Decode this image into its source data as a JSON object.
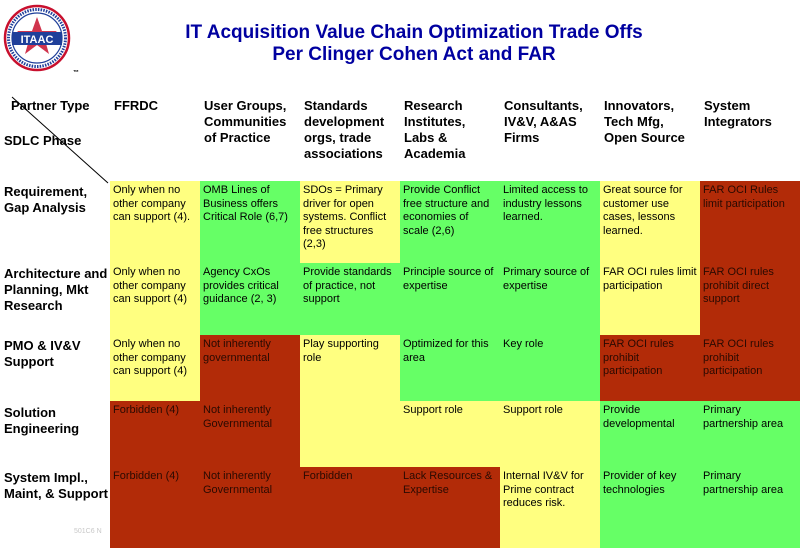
{
  "title": {
    "line1": "IT Acquisition Value Chain Optimization Trade Offs",
    "line2": "Per Clinger Cohen Act and FAR"
  },
  "logo": {
    "text": "ITAAC",
    "tm": "™"
  },
  "corner": {
    "partner_type": "Partner Type",
    "sdlc_phase": "SDLC Phase"
  },
  "columns": [
    "FFRDC",
    "User Groups, Communities of Practice",
    "Standards development orgs, trade associations",
    "Research Institutes, Labs & Academia",
    "Consultants, IV&V, A&AS Firms",
    "Innovators, Tech Mfg, Open Source",
    "System Integrators"
  ],
  "rows": [
    {
      "label": "Requirement, Gap Analysis",
      "cells": [
        {
          "text": "Only when no other company can support (4).",
          "color": "yellow"
        },
        {
          "text": "OMB Lines of Business offers Critical Role (6,7)",
          "color": "green"
        },
        {
          "text": "SDOs = Primary driver for open systems. Conflict free structures (2,3)",
          "color": "yellow"
        },
        {
          "text": "Provide Conflict free structure and economies of scale (2,6)",
          "color": "green"
        },
        {
          "text": "Limited access to industry lessons learned.",
          "color": "green"
        },
        {
          "text": "Great source for customer use cases, lessons learned.",
          "color": "yellow"
        },
        {
          "text": "FAR OCI Rules limit participation",
          "color": "red"
        }
      ]
    },
    {
      "label": "Architecture and Planning, Mkt Research",
      "cells": [
        {
          "text": "Only when no other company can support (4)",
          "color": "yellow"
        },
        {
          "text": "Agency CxOs provides critical guidance (2, 3)",
          "color": "green"
        },
        {
          "text": "Provide standards of practice, not support",
          "color": "green"
        },
        {
          "text": "Principle source of expertise",
          "color": "green"
        },
        {
          "text": "Primary source of expertise",
          "color": "green"
        },
        {
          "text": "FAR OCI rules limit participation",
          "color": "yellow"
        },
        {
          "text": "FAR OCI rules prohibit direct support",
          "color": "red"
        }
      ]
    },
    {
      "label": "PMO & IV&V Support",
      "cells": [
        {
          "text": "Only when no other company can support (4)",
          "color": "yellow"
        },
        {
          "text": "Not inherently governmental",
          "color": "red"
        },
        {
          "text": "Play supporting role",
          "color": "yellow"
        },
        {
          "text": "Optimized for this area",
          "color": "green"
        },
        {
          "text": "Key role",
          "color": "green"
        },
        {
          "text": "FAR OCI rules prohibit participation",
          "color": "red"
        },
        {
          "text": "FAR OCI rules prohibit participation",
          "color": "red"
        }
      ]
    },
    {
      "label": "Solution Engineering",
      "cells": [
        {
          "text": "Forbidden (4)",
          "color": "red"
        },
        {
          "text": "Not inherently Governmental",
          "color": "red"
        },
        {
          "text": "",
          "color": "yellow"
        },
        {
          "text": "Support role",
          "color": "yellow"
        },
        {
          "text": "Support role",
          "color": "yellow"
        },
        {
          "text": "Provide developmental",
          "color": "green"
        },
        {
          "text": "Primary partnership area",
          "color": "green"
        }
      ]
    },
    {
      "label": "System Impl., Maint, & Support",
      "cells": [
        {
          "text": "Forbidden (4)",
          "color": "red"
        },
        {
          "text": "Not inherently Governmental",
          "color": "red"
        },
        {
          "text": "Forbidden",
          "color": "red"
        },
        {
          "text": "Lack Resources & Expertise",
          "color": "red"
        },
        {
          "text": "Internal IV&V for Prime contract reduces risk.",
          "color": "yellow"
        },
        {
          "text": "Provider of key technologies",
          "color": "green"
        },
        {
          "text": "Primary partnership area",
          "color": "green"
        }
      ]
    }
  ],
  "colors": {
    "yellow": "#ffff80",
    "green": "#66ff66",
    "red": "#b22b08",
    "title": "#0000a0"
  },
  "footer": "501C6 N"
}
